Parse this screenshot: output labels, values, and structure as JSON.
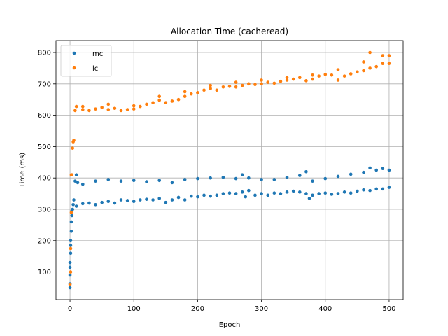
{
  "chart_data": {
    "type": "scatter",
    "title": "Allocation Time (cacheread)",
    "xlabel": "Epoch",
    "ylabel": "Time (ms)",
    "xlim": [
      -22,
      522
    ],
    "ylim": [
      12,
      838
    ],
    "xticks": [
      0,
      100,
      200,
      300,
      400,
      500
    ],
    "yticks": [
      100,
      200,
      300,
      400,
      500,
      600,
      700,
      800
    ],
    "grid": true,
    "legend_position": "top-left",
    "series": [
      {
        "name": "mc",
        "color": "#1f77b4",
        "points": [
          [
            0,
            50
          ],
          [
            0,
            62
          ],
          [
            0,
            90
          ],
          [
            0,
            115
          ],
          [
            0,
            130
          ],
          [
            1,
            160
          ],
          [
            1,
            185
          ],
          [
            1,
            200
          ],
          [
            2,
            230
          ],
          [
            2,
            260
          ],
          [
            3,
            280
          ],
          [
            3,
            295
          ],
          [
            4,
            300
          ],
          [
            5,
            315
          ],
          [
            6,
            330
          ],
          [
            8,
            390
          ],
          [
            10,
            410
          ],
          [
            12,
            385
          ],
          [
            10,
            310
          ],
          [
            20,
            318
          ],
          [
            30,
            320
          ],
          [
            40,
            315
          ],
          [
            50,
            322
          ],
          [
            60,
            325
          ],
          [
            70,
            320
          ],
          [
            80,
            330
          ],
          [
            90,
            328
          ],
          [
            100,
            325
          ],
          [
            110,
            330
          ],
          [
            120,
            332
          ],
          [
            130,
            330
          ],
          [
            140,
            335
          ],
          [
            150,
            322
          ],
          [
            160,
            330
          ],
          [
            170,
            338
          ],
          [
            180,
            330
          ],
          [
            190,
            342
          ],
          [
            200,
            340
          ],
          [
            210,
            345
          ],
          [
            220,
            342
          ],
          [
            230,
            345
          ],
          [
            240,
            350
          ],
          [
            250,
            352
          ],
          [
            260,
            350
          ],
          [
            270,
            355
          ],
          [
            275,
            340
          ],
          [
            280,
            360
          ],
          [
            290,
            345
          ],
          [
            300,
            350
          ],
          [
            310,
            345
          ],
          [
            320,
            352
          ],
          [
            330,
            350
          ],
          [
            340,
            355
          ],
          [
            350,
            358
          ],
          [
            360,
            355
          ],
          [
            370,
            350
          ],
          [
            375,
            335
          ],
          [
            380,
            345
          ],
          [
            390,
            350
          ],
          [
            400,
            352
          ],
          [
            410,
            348
          ],
          [
            420,
            350
          ],
          [
            430,
            355
          ],
          [
            440,
            352
          ],
          [
            450,
            358
          ],
          [
            460,
            362
          ],
          [
            470,
            360
          ],
          [
            480,
            365
          ],
          [
            490,
            365
          ],
          [
            500,
            370
          ],
          [
            20,
            380
          ],
          [
            40,
            390
          ],
          [
            60,
            395
          ],
          [
            80,
            390
          ],
          [
            100,
            392
          ],
          [
            120,
            388
          ],
          [
            140,
            392
          ],
          [
            160,
            385
          ],
          [
            180,
            395
          ],
          [
            200,
            398
          ],
          [
            220,
            400
          ],
          [
            240,
            402
          ],
          [
            260,
            398
          ],
          [
            270,
            410
          ],
          [
            280,
            400
          ],
          [
            300,
            395
          ],
          [
            320,
            395
          ],
          [
            340,
            402
          ],
          [
            360,
            408
          ],
          [
            370,
            420
          ],
          [
            380,
            390
          ],
          [
            400,
            398
          ],
          [
            420,
            405
          ],
          [
            440,
            412
          ],
          [
            460,
            418
          ],
          [
            470,
            432
          ],
          [
            480,
            425
          ],
          [
            490,
            430
          ],
          [
            500,
            425
          ]
        ]
      },
      {
        "name": "lc",
        "color": "#ff7f0e",
        "points": [
          [
            0,
            60
          ],
          [
            1,
            100
          ],
          [
            1,
            175
          ],
          [
            2,
            290
          ],
          [
            2,
            410
          ],
          [
            3,
            410
          ],
          [
            4,
            495
          ],
          [
            5,
            515
          ],
          [
            6,
            520
          ],
          [
            8,
            615
          ],
          [
            10,
            628
          ],
          [
            20,
            618
          ],
          [
            30,
            615
          ],
          [
            40,
            620
          ],
          [
            50,
            625
          ],
          [
            60,
            618
          ],
          [
            70,
            622
          ],
          [
            80,
            615
          ],
          [
            90,
            618
          ],
          [
            100,
            620
          ],
          [
            110,
            628
          ],
          [
            120,
            635
          ],
          [
            130,
            640
          ],
          [
            140,
            648
          ],
          [
            150,
            640
          ],
          [
            160,
            645
          ],
          [
            170,
            650
          ],
          [
            180,
            660
          ],
          [
            190,
            668
          ],
          [
            200,
            672
          ],
          [
            210,
            680
          ],
          [
            220,
            685
          ],
          [
            230,
            680
          ],
          [
            240,
            690
          ],
          [
            250,
            692
          ],
          [
            260,
            690
          ],
          [
            270,
            695
          ],
          [
            280,
            700
          ],
          [
            290,
            698
          ],
          [
            300,
            700
          ],
          [
            310,
            705
          ],
          [
            320,
            702
          ],
          [
            330,
            708
          ],
          [
            340,
            712
          ],
          [
            350,
            715
          ],
          [
            360,
            720
          ],
          [
            370,
            710
          ],
          [
            380,
            715
          ],
          [
            390,
            725
          ],
          [
            400,
            730
          ],
          [
            410,
            728
          ],
          [
            420,
            712
          ],
          [
            430,
            725
          ],
          [
            440,
            732
          ],
          [
            450,
            738
          ],
          [
            460,
            742
          ],
          [
            470,
            750
          ],
          [
            480,
            755
          ],
          [
            490,
            765
          ],
          [
            500,
            765
          ],
          [
            20,
            628
          ],
          [
            60,
            635
          ],
          [
            100,
            630
          ],
          [
            140,
            660
          ],
          [
            180,
            675
          ],
          [
            220,
            695
          ],
          [
            260,
            705
          ],
          [
            300,
            712
          ],
          [
            340,
            720
          ],
          [
            380,
            728
          ],
          [
            420,
            745
          ],
          [
            460,
            770
          ],
          [
            470,
            800
          ],
          [
            490,
            790
          ],
          [
            500,
            790
          ]
        ]
      }
    ]
  }
}
